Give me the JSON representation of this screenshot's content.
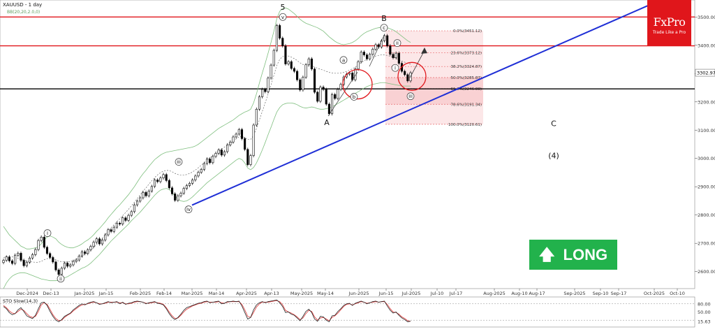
{
  "chart_data": {
    "type": "candlestick",
    "title": "XAUUSD - 1 day",
    "subtitle": "BB(20,20,2.0,0)",
    "ylim": [
      2540,
      3560
    ],
    "y_ticks": [
      2600,
      2700,
      2800,
      2900,
      3000,
      3100,
      3200,
      3300,
      3400,
      3500
    ],
    "y_tick_labels": [
      "2600.00",
      "2700.00",
      "2800.00",
      "2900.00",
      "3000.00",
      "3100.00",
      "3200.00",
      "3300.00",
      "3400.00",
      "3500.00"
    ],
    "current_price": 3302.97,
    "current_price_label": "3302.97",
    "x_tick_labels": [
      "Dec-2024",
      "Dec-13",
      "Jan-2025",
      "Jan-15",
      "Feb-2025",
      "Feb-14",
      "Mar-2025",
      "Mar-14",
      "Apr-2025",
      "Apr-13",
      "May-2025",
      "May-14",
      "Jun-2025",
      "Jun-15",
      "Jul-2025",
      "Jul-10",
      "Jul-17",
      "Aug-2025",
      "Aug-10",
      "Aug-17",
      "Sep-2025",
      "Sep-10",
      "Sep-17",
      "Oct-2025",
      "Oct-10"
    ],
    "closes": [
      2640,
      2652,
      2638,
      2629,
      2658,
      2665,
      2640,
      2621,
      2633,
      2648,
      2660,
      2678,
      2710,
      2722,
      2686,
      2664,
      2650,
      2634,
      2606,
      2590,
      2612,
      2630,
      2619,
      2624,
      2636,
      2641,
      2655,
      2670,
      2664,
      2677,
      2689,
      2704,
      2716,
      2698,
      2712,
      2730,
      2748,
      2742,
      2757,
      2771,
      2768,
      2790,
      2781,
      2799,
      2812,
      2836,
      2849,
      2861,
      2880,
      2868,
      2885,
      2901,
      2924,
      2918,
      2931,
      2943,
      2922,
      2896,
      2875,
      2852,
      2868,
      2877,
      2894,
      2904,
      2912,
      2924,
      2938,
      2951,
      2961,
      2982,
      2998,
      2985,
      3007,
      3018,
      3030,
      3012,
      3024,
      3048,
      3058,
      3076,
      3086,
      3102,
      3070,
      3032,
      2978,
      3010,
      3118,
      3174,
      3218,
      3244,
      3236,
      3284,
      3330,
      3382,
      3470,
      3425,
      3398,
      3334,
      3342,
      3318,
      3308,
      3278,
      3242,
      3287,
      3331,
      3352,
      3316,
      3234,
      3202,
      3252,
      3244,
      3192,
      3158,
      3226,
      3212,
      3244,
      3262,
      3288,
      3298,
      3302,
      3278,
      3316,
      3342,
      3376,
      3366,
      3352,
      3368,
      3386,
      3402,
      3394,
      3416,
      3434,
      3398,
      3368,
      3356,
      3372,
      3336,
      3308,
      3296,
      3274,
      3303
    ],
    "bb_upper": [
      2760,
      2745,
      2730,
      2720,
      2710,
      2700,
      2690,
      2685,
      2680,
      2680,
      2682,
      2684,
      2688,
      2698,
      2712,
      2722,
      2726,
      2722,
      2716,
      2704,
      2696,
      2690,
      2686,
      2684,
      2684,
      2688,
      2692,
      2698,
      2706,
      2712,
      2720,
      2730,
      2742,
      2752,
      2764,
      2776,
      2790,
      2802,
      2814,
      2826,
      2836,
      2848,
      2860,
      2872,
      2886,
      2900,
      2916,
      2932,
      2946,
      2958,
      2972,
      2984,
      2996,
      3004,
      3012,
      3018,
      3022,
      3024,
      3026,
      3028,
      3030,
      3032,
      3034,
      3036,
      3038,
      3040,
      3044,
      3050,
      3058,
      3066,
      3074,
      3082,
      3090,
      3098,
      3106,
      3112,
      3118,
      3124,
      3130,
      3136,
      3144,
      3152,
      3158,
      3164,
      3168,
      3174,
      3196,
      3228,
      3266,
      3302,
      3336,
      3372,
      3410,
      3450,
      3494,
      3520,
      3530,
      3532,
      3528,
      3520,
      3512,
      3502,
      3492,
      3484,
      3478,
      3474,
      3470,
      3466,
      3462,
      3456,
      3450,
      3440,
      3430,
      3422,
      3414,
      3408,
      3404,
      3402,
      3404,
      3406,
      3410,
      3416,
      3424,
      3434,
      3442,
      3448,
      3452,
      3456,
      3460,
      3462,
      3464,
      3464,
      3462,
      3458,
      3454,
      3448,
      3440,
      3432,
      3424,
      3416,
      3410
    ],
    "bb_lower": [
      2540,
      2560,
      2574,
      2584,
      2590,
      2594,
      2596,
      2596,
      2594,
      2590,
      2586,
      2582,
      2578,
      2574,
      2572,
      2570,
      2568,
      2568,
      2568,
      2570,
      2574,
      2578,
      2582,
      2588,
      2594,
      2600,
      2606,
      2612,
      2616,
      2622,
      2630,
      2640,
      2650,
      2660,
      2672,
      2684,
      2696,
      2708,
      2718,
      2728,
      2738,
      2748,
      2758,
      2768,
      2780,
      2790,
      2800,
      2810,
      2822,
      2834,
      2846,
      2858,
      2870,
      2880,
      2888,
      2892,
      2894,
      2890,
      2880,
      2866,
      2856,
      2850,
      2848,
      2850,
      2856,
      2864,
      2874,
      2884,
      2894,
      2904,
      2914,
      2922,
      2930,
      2938,
      2946,
      2954,
      2962,
      2970,
      2978,
      2986,
      2994,
      3000,
      2996,
      2984,
      2966,
      2960,
      2968,
      2984,
      3006,
      3030,
      3056,
      3084,
      3110,
      3138,
      3164,
      3180,
      3190,
      3194,
      3196,
      3196,
      3194,
      3190,
      3184,
      3180,
      3178,
      3180,
      3182,
      3180,
      3176,
      3174,
      3174,
      3176,
      3178,
      3182,
      3188,
      3194,
      3200,
      3206,
      3212,
      3218,
      3224,
      3230,
      3236,
      3242,
      3248,
      3254,
      3258,
      3262,
      3264,
      3266,
      3268,
      3268,
      3266,
      3264,
      3262,
      3260,
      3258,
      3256,
      3256,
      3256,
      3256
    ],
    "horizontal_lines": [
      {
        "price": 3500,
        "color": "#e0161b"
      },
      {
        "price": 3398,
        "color": "#e0161b"
      },
      {
        "price": 3246,
        "color": "#000000"
      }
    ],
    "trendline": {
      "from": {
        "x": "Mar-2025",
        "y": 2835
      },
      "to": {
        "x": "Oct-2025",
        "y": 3550
      },
      "color": "#1f2fd6"
    },
    "fib_levels": [
      {
        "price": 3451.12,
        "label": "0.0%(3451.12)"
      },
      {
        "price": 3373.12,
        "label": "23.6%(3373.12)"
      },
      {
        "price": 3324.87,
        "label": "38.2%(3324.87)"
      },
      {
        "price": 3285.87,
        "label": "50.0%(3285.87)"
      },
      {
        "price": 3246.88,
        "label": "61.8%(3246.88)"
      },
      {
        "price": 3191.34,
        "label": "78.6%(3191.34)"
      },
      {
        "price": 3120.61,
        "label": "100.0%(3120.61)"
      }
    ],
    "wave_labels": [
      {
        "text": "5",
        "x": "Apr-13",
        "y": 3535,
        "circled": false
      },
      {
        "text": "v",
        "x": "Apr-13",
        "y": 3500,
        "circled": true
      },
      {
        "text": "B",
        "x": "Jun-15",
        "y": 3496,
        "circled": false
      },
      {
        "text": "c",
        "x": "Jun-15",
        "y": 3462,
        "circled": true
      },
      {
        "text": "a",
        "x": "Jun-2025",
        "y": 3348,
        "circled": true
      },
      {
        "text": "b",
        "x": "Jun-2025",
        "y": 3218,
        "circled": true
      },
      {
        "text": "A",
        "x": "May-14",
        "y": 3128,
        "circled": false
      },
      {
        "text": "ii",
        "x": "Jun-15",
        "y": 3408,
        "circled": true
      },
      {
        "text": "i",
        "x": "Jun-15",
        "y": 3320,
        "circled": true
      },
      {
        "text": "iii",
        "x": "Jun-15",
        "y": 3220,
        "circled": true
      },
      {
        "text": "iii",
        "x": "Feb-14",
        "y": 2988,
        "circled": true
      },
      {
        "text": "iv",
        "x": "Mar-2025",
        "y": 2820,
        "circled": true
      },
      {
        "text": "i",
        "x": "Dec-13",
        "y": 2736,
        "circled": true
      },
      {
        "text": "ii",
        "x": "Dec-13",
        "y": 2575,
        "circled": true
      },
      {
        "text": "C",
        "x": "Aug-17",
        "y": 3124,
        "circled": false
      },
      {
        "text": "(4)",
        "x": "Aug-17",
        "y": 3010,
        "circled": false
      }
    ],
    "oscillator": {
      "title": "STO Slow(14,3)",
      "ylim": [
        0,
        100
      ],
      "levels": [
        80,
        20
      ],
      "tick_labels": [
        "80.00",
        "50.00",
        "15.63"
      ],
      "k_last": 15.63,
      "k": [
        70,
        62,
        48,
        40,
        44,
        58,
        66,
        52,
        36,
        30,
        26,
        38,
        62,
        84,
        86,
        74,
        52,
        34,
        20,
        14,
        22,
        34,
        40,
        46,
        58,
        66,
        74,
        80,
        76,
        82,
        86,
        88,
        84,
        78,
        80,
        84,
        88,
        84,
        86,
        88,
        80,
        86,
        78,
        82,
        84,
        88,
        90,
        88,
        86,
        80,
        84,
        86,
        88,
        82,
        80,
        76,
        62,
        44,
        30,
        22,
        30,
        42,
        56,
        66,
        70,
        74,
        78,
        82,
        84,
        88,
        90,
        84,
        86,
        88,
        90,
        80,
        82,
        88,
        88,
        90,
        88,
        90,
        72,
        48,
        24,
        30,
        58,
        76,
        84,
        88,
        84,
        88,
        90,
        92,
        94,
        84,
        70,
        48,
        50,
        42,
        38,
        28,
        18,
        34,
        52,
        60,
        48,
        24,
        16,
        34,
        32,
        20,
        14,
        36,
        38,
        52,
        62,
        74,
        80,
        82,
        74,
        82,
        86,
        90,
        86,
        80,
        84,
        88,
        90,
        86,
        88,
        90,
        72,
        56,
        46,
        50,
        38,
        28,
        22,
        14,
        16
      ],
      "d": [
        74,
        66,
        54,
        46,
        44,
        52,
        60,
        56,
        44,
        34,
        30,
        34,
        52,
        76,
        84,
        78,
        60,
        40,
        26,
        18,
        20,
        30,
        38,
        44,
        54,
        62,
        70,
        76,
        78,
        80,
        84,
        86,
        84,
        80,
        80,
        82,
        86,
        86,
        86,
        86,
        84,
        84,
        80,
        80,
        82,
        86,
        88,
        88,
        86,
        82,
        82,
        84,
        86,
        84,
        82,
        78,
        66,
        50,
        36,
        26,
        28,
        38,
        50,
        60,
        66,
        72,
        76,
        80,
        82,
        86,
        88,
        86,
        86,
        86,
        88,
        84,
        82,
        86,
        88,
        88,
        88,
        88,
        78,
        58,
        34,
        30,
        48,
        68,
        80,
        86,
        86,
        86,
        88,
        90,
        92,
        88,
        76,
        56,
        50,
        46,
        40,
        32,
        22,
        28,
        44,
        56,
        52,
        32,
        20,
        28,
        30,
        24,
        18,
        30,
        36,
        46,
        58,
        70,
        78,
        80,
        76,
        80,
        84,
        88,
        86,
        82,
        84,
        86,
        88,
        86,
        88,
        88,
        78,
        62,
        50,
        48,
        42,
        32,
        26,
        18,
        16
      ]
    }
  },
  "brand": {
    "name": "FxPro",
    "tagline": "Trade Like a Pro",
    "color": "#e0161b"
  },
  "signal": {
    "label": "LONG",
    "icon": "up-arrow-icon",
    "color": "#22b24c"
  }
}
